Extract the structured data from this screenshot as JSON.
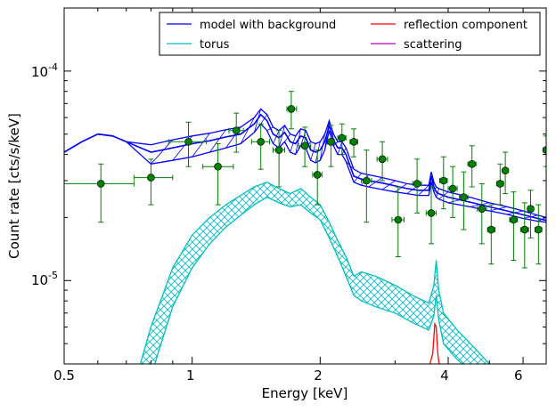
{
  "chart_data": {
    "type": "line",
    "xlabel": "Energy [keV]",
    "ylabel": "Count rate [cts/s/keV]",
    "x_scale": "log",
    "y_scale": "log",
    "xlim": [
      0.5,
      6.8
    ],
    "ylim": [
      4e-06,
      0.0002
    ],
    "x_ticks": [
      {
        "value": 0.5,
        "label": "0.5"
      },
      {
        "value": 1,
        "label": "1"
      },
      {
        "value": 2,
        "label": "2"
      },
      {
        "value": 4,
        "label": "4"
      },
      {
        "value": 6,
        "label": "6"
      }
    ],
    "y_ticks": [
      {
        "value": 1e-05,
        "base": "10",
        "exp": "-5"
      },
      {
        "value": 0.0001,
        "base": "10",
        "exp": "-4"
      }
    ],
    "legend": {
      "placement": "top-right",
      "entries": [
        {
          "label": "model with background",
          "color": "#0000ff"
        },
        {
          "label": "reflection component",
          "color": "#ff0000"
        },
        {
          "label": "torus",
          "color": "#00bfbf"
        },
        {
          "label": "scattering",
          "color": "#bf00bf"
        }
      ]
    },
    "series": [
      {
        "name": "model with background",
        "color": "#0000ff",
        "x": [
          0.5,
          0.55,
          0.6,
          0.65,
          0.7,
          0.8,
          0.9,
          1.0,
          1.1,
          1.2,
          1.3,
          1.4,
          1.45,
          1.5,
          1.55,
          1.6,
          1.65,
          1.7,
          1.75,
          1.8,
          1.85,
          1.9,
          1.95,
          2.0,
          2.05,
          2.1,
          2.15,
          2.2,
          2.25,
          2.3,
          2.4,
          2.5,
          2.6,
          2.8,
          3.0,
          3.2,
          3.4,
          3.6,
          3.65,
          3.7,
          3.75,
          3.8,
          4.0,
          4.5,
          5.0,
          5.5,
          6.0,
          6.5,
          6.8
        ],
        "upper": [
          4.1e-05,
          4.6e-05,
          5e-05,
          4.9e-05,
          4.6e-05,
          4.45e-05,
          4.7e-05,
          4.9e-05,
          5.05e-05,
          5.25e-05,
          5.4e-05,
          6e-05,
          6.6e-05,
          6.2e-05,
          5.4e-05,
          5.2e-05,
          5.5e-05,
          5e-05,
          4.9e-05,
          5.3e-05,
          5.2e-05,
          4.6e-05,
          4.5e-05,
          4.6e-05,
          5e-05,
          5.8e-05,
          5e-05,
          4.6e-05,
          4.6e-05,
          4.3e-05,
          3.4e-05,
          3.25e-05,
          3.2e-05,
          3.1e-05,
          3e-05,
          2.9e-05,
          2.85e-05,
          2.85e-05,
          3.3e-05,
          2.95e-05,
          2.8e-05,
          2.75e-05,
          2.65e-05,
          2.5e-05,
          2.35e-05,
          2.25e-05,
          2.15e-05,
          2.05e-05,
          2e-05
        ],
        "middle": [
          4.1e-05,
          4.6e-05,
          5e-05,
          4.9e-05,
          4.6e-05,
          4.1e-05,
          4.3e-05,
          4.5e-05,
          4.65e-05,
          4.85e-05,
          5e-05,
          5.6e-05,
          6.2e-05,
          5.8e-05,
          5e-05,
          4.8e-05,
          5.1e-05,
          4.6e-05,
          4.5e-05,
          4.9e-05,
          4.8e-05,
          4.2e-05,
          4.1e-05,
          4.2e-05,
          4.6e-05,
          5.5e-05,
          4.7e-05,
          4.3e-05,
          4.3e-05,
          4e-05,
          3.15e-05,
          3.05e-05,
          3e-05,
          2.92e-05,
          2.83e-05,
          2.75e-05,
          2.7e-05,
          2.7e-05,
          3.15e-05,
          2.8e-05,
          2.65e-05,
          2.6e-05,
          2.5e-05,
          2.37e-05,
          2.25e-05,
          2.15e-05,
          2.06e-05,
          1.98e-05,
          1.94e-05
        ],
        "lower": [
          4.1e-05,
          4.6e-05,
          5e-05,
          4.9e-05,
          4.6e-05,
          3.6e-05,
          3.75e-05,
          3.9e-05,
          4.1e-05,
          4.3e-05,
          4.5e-05,
          5.1e-05,
          5.6e-05,
          5.2e-05,
          4.5e-05,
          4.3e-05,
          4.6e-05,
          4.1e-05,
          4e-05,
          4.4e-05,
          4.3e-05,
          3.75e-05,
          3.65e-05,
          3.75e-05,
          4.2e-05,
          5.2e-05,
          4.4e-05,
          4e-05,
          4e-05,
          3.7e-05,
          2.95e-05,
          2.85e-05,
          2.8e-05,
          2.72e-05,
          2.65e-05,
          2.6e-05,
          2.55e-05,
          2.55e-05,
          2.95e-05,
          2.65e-05,
          2.5e-05,
          2.45e-05,
          2.35e-05,
          2.25e-05,
          2.15e-05,
          2.07e-05,
          1.98e-05,
          1.92e-05,
          1.9e-05
        ]
      },
      {
        "name": "torus",
        "color": "#00bfbf",
        "x": [
          0.75,
          0.8,
          0.9,
          1.0,
          1.1,
          1.2,
          1.3,
          1.4,
          1.5,
          1.6,
          1.7,
          1.8,
          1.9,
          2.0,
          2.1,
          2.2,
          2.3,
          2.4,
          2.5,
          2.7,
          3.0,
          3.3,
          3.6,
          3.7,
          3.75,
          3.8,
          3.9,
          4.2,
          4.6,
          5.0
        ],
        "upper": [
          3.8e-06,
          6e-06,
          1.15e-05,
          1.65e-05,
          2e-05,
          2.3e-05,
          2.55e-05,
          2.8e-05,
          2.95e-05,
          2.75e-05,
          2.6e-05,
          2.75e-05,
          2.5e-05,
          2.3e-05,
          1.9e-05,
          1.55e-05,
          1.3e-05,
          1.05e-05,
          1.1e-05,
          1.05e-05,
          9.5e-06,
          8.5e-06,
          7.8e-06,
          9.5e-06,
          1.25e-05,
          9e-06,
          7e-06,
          5.8e-06,
          4.8e-06,
          4e-06
        ],
        "lower": [
          2.5e-06,
          3.5e-06,
          7.5e-06,
          1.15e-05,
          1.5e-05,
          1.8e-05,
          2.05e-05,
          2.3e-05,
          2.5e-05,
          2.35e-05,
          2.25e-05,
          2.3e-05,
          2.1e-05,
          1.95e-05,
          1.6e-05,
          1.3e-05,
          1.05e-05,
          8.5e-06,
          8e-06,
          7.5e-06,
          7e-06,
          6.3e-06,
          5.8e-06,
          6.8e-06,
          8.5e-06,
          6.5e-06,
          5e-06,
          4.2e-06,
          3.6e-06,
          3.2e-06
        ]
      },
      {
        "name": "reflection component",
        "color": "#ff0000",
        "x": [
          3.6,
          3.68,
          3.72,
          3.75,
          3.78,
          3.82
        ],
        "y": [
          3.8e-06,
          4.5e-06,
          6.2e-06,
          6e-06,
          4.5e-06,
          3.8e-06
        ]
      },
      {
        "name": "data",
        "color": "#008000",
        "points": [
          {
            "x": 0.61,
            "y": 2.9e-05,
            "xerr": [
              0.5,
              0.73
            ],
            "yerr": [
              1.9e-05,
              3.6e-05
            ]
          },
          {
            "x": 0.8,
            "y": 3.1e-05,
            "xerr": [
              0.73,
              0.9
            ],
            "yerr": [
              2.3e-05,
              3.8e-05
            ]
          },
          {
            "x": 0.98,
            "y": 4.6e-05,
            "xerr": [
              0.88,
              1.08
            ],
            "yerr": [
              3.5e-05,
              5.7e-05
            ]
          },
          {
            "x": 1.15,
            "y": 3.5e-05,
            "xerr": [
              1.06,
              1.25
            ],
            "yerr": [
              2.3e-05,
              4.5e-05
            ]
          },
          {
            "x": 1.27,
            "y": 5.2e-05,
            "xerr": [
              1.22,
              1.32
            ],
            "yerr": [
              4.1e-05,
              6.3e-05
            ]
          },
          {
            "x": 1.45,
            "y": 4.6e-05,
            "xerr": [
              1.38,
              1.52
            ],
            "yerr": [
              3.4e-05,
              5.6e-05
            ]
          },
          {
            "x": 1.6,
            "y": 4.2e-05,
            "xerr": [
              1.55,
              1.65
            ],
            "yerr": [
              2.8e-05,
              5.2e-05
            ]
          },
          {
            "x": 1.71,
            "y": 6.6e-05,
            "xerr": [
              1.67,
              1.76
            ],
            "yerr": [
              5.3e-05,
              8e-05
            ]
          },
          {
            "x": 1.84,
            "y": 4.4e-05,
            "xerr": [
              1.78,
              1.9
            ],
            "yerr": [
              3.5e-05,
              5.4e-05
            ]
          },
          {
            "x": 1.97,
            "y": 3.2e-05,
            "xerr": [
              1.92,
              2.02
            ],
            "yerr": [
              2.3e-05,
              4.2e-05
            ]
          },
          {
            "x": 2.12,
            "y": 4.6e-05,
            "xerr": [
              2.08,
              2.16
            ],
            "yerr": [
              3.5e-05,
              5.5e-05
            ]
          },
          {
            "x": 2.25,
            "y": 4.8e-05,
            "xerr": [
              2.2,
              2.3
            ],
            "yerr": [
              4e-05,
              5.6e-05
            ]
          },
          {
            "x": 2.4,
            "y": 4.6e-05,
            "xerr": [
              2.35,
              2.45
            ],
            "yerr": [
              3.9e-05,
              5.3e-05
            ]
          },
          {
            "x": 2.57,
            "y": 3e-05,
            "xerr": [
              2.5,
              2.64
            ],
            "yerr": [
              1.9e-05,
              4.2e-05
            ]
          },
          {
            "x": 2.8,
            "y": 3.8e-05,
            "xerr": [
              2.72,
              2.88
            ],
            "yerr": [
              3e-05,
              4.6e-05
            ]
          },
          {
            "x": 3.05,
            "y": 1.95e-05,
            "xerr": [
              2.95,
              3.15
            ],
            "yerr": [
              1.3e-05,
              2.8e-05
            ]
          },
          {
            "x": 3.38,
            "y": 2.9e-05,
            "xerr": [
              3.3,
              3.46
            ],
            "yerr": [
              2.1e-05,
              3.8e-05
            ]
          },
          {
            "x": 3.65,
            "y": 2.1e-05,
            "xerr": [
              3.55,
              3.75
            ],
            "yerr": [
              1.5e-05,
              2.8e-05
            ]
          },
          {
            "x": 3.9,
            "y": 3e-05,
            "xerr": [
              3.82,
              3.98
            ],
            "yerr": [
              2.2e-05,
              3.9e-05
            ]
          },
          {
            "x": 4.1,
            "y": 2.75e-05,
            "xerr": [
              4.0,
              4.2
            ],
            "yerr": [
              2e-05,
              3.5e-05
            ]
          },
          {
            "x": 4.35,
            "y": 2.5e-05,
            "xerr": [
              4.25,
              4.45
            ],
            "yerr": [
              1.75e-05,
              3.3e-05
            ]
          },
          {
            "x": 4.55,
            "y": 3.6e-05,
            "xerr": [
              4.45,
              4.65
            ],
            "yerr": [
              2.8e-05,
              4.4e-05
            ]
          },
          {
            "x": 4.8,
            "y": 2.2e-05,
            "xerr": [
              4.68,
              4.92
            ],
            "yerr": [
              1.5e-05,
              2.9e-05
            ]
          },
          {
            "x": 5.05,
            "y": 1.75e-05,
            "xerr": [
              4.95,
              5.15
            ],
            "yerr": [
              1.2e-05,
              2.3e-05
            ]
          },
          {
            "x": 5.3,
            "y": 2.9e-05,
            "xerr": [
              5.2,
              5.4
            ],
            "yerr": [
              2.3e-05,
              3.6e-05
            ]
          },
          {
            "x": 5.45,
            "y": 3.35e-05,
            "xerr": [
              5.38,
              5.52
            ],
            "yerr": [
              2.6e-05,
              4.1e-05
            ]
          },
          {
            "x": 5.7,
            "y": 1.95e-05,
            "xerr": [
              5.58,
              5.82
            ],
            "yerr": [
              1.25e-05,
              2.65e-05
            ]
          },
          {
            "x": 6.05,
            "y": 1.75e-05,
            "xerr": [
              5.92,
              6.18
            ],
            "yerr": [
              1.15e-05,
              2.35e-05
            ]
          },
          {
            "x": 6.25,
            "y": 2.2e-05,
            "xerr": [
              6.15,
              6.35
            ],
            "yerr": [
              1.6e-05,
              2.7e-05
            ]
          },
          {
            "x": 6.52,
            "y": 1.75e-05,
            "xerr": [
              6.4,
              6.64
            ],
            "yerr": [
              1.2e-05,
              2.3e-05
            ]
          },
          {
            "x": 6.8,
            "y": 4.2e-05,
            "xerr": [
              6.7,
              6.9
            ],
            "yerr": [
              3.5e-05,
              4.9e-05
            ]
          }
        ]
      }
    ]
  }
}
